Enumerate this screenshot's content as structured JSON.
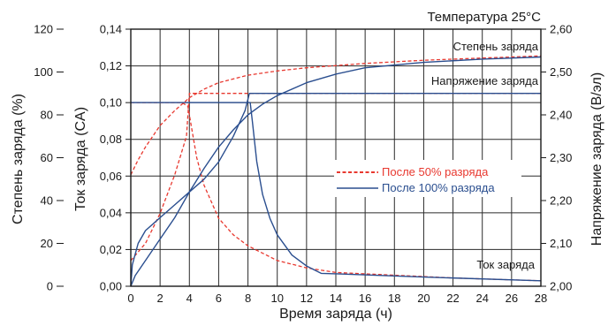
{
  "chart_data": {
    "type": "line",
    "title": "Температура 25°C",
    "xlabel": "Время заряда (ч)",
    "ylabel_outer": "Степень заряда (%)",
    "ylabel_inner": "Ток заряда (CA)",
    "ylabel_right": "Напряжение заряда (В/эл)",
    "xlim": [
      0,
      28
    ],
    "x_ticks": [
      "0",
      "2",
      "4",
      "6",
      "8",
      "10",
      "12",
      "14",
      "16",
      "18",
      "20",
      "22",
      "24",
      "26",
      "28"
    ],
    "y_soc_lim": [
      0,
      120
    ],
    "y_soc_ticks": [
      "0",
      "20",
      "40",
      "60",
      "80",
      "100",
      "120"
    ],
    "y_current_lim": [
      0,
      0.14
    ],
    "y_current_ticks": [
      "0,00",
      "0,02",
      "0,04",
      "0,06",
      "0,08",
      "0,10",
      "0,12",
      "0,14"
    ],
    "y_voltage_lim": [
      2.0,
      2.6
    ],
    "y_voltage_ticks": [
      "2,00",
      "2,10",
      "2,20",
      "2,30",
      "2,40",
      "2,50",
      "2,60"
    ],
    "grid": true,
    "legend_placement": "center-right",
    "annotations": {
      "soc": "Степень заряда",
      "voltage": "Напряжение заряда",
      "current": "Ток заряда"
    },
    "colors": {
      "red": "#e8382f",
      "blue": "#2a4e8f"
    },
    "series": [
      {
        "name": "После 50% разряда",
        "color": "#e8382f",
        "dash": true,
        "curves": {
          "soc_percent": [
            [
              0,
              52
            ],
            [
              0.5,
              59
            ],
            [
              1,
              65
            ],
            [
              2,
              75
            ],
            [
              3,
              82
            ],
            [
              4,
              88
            ],
            [
              5,
              92
            ],
            [
              6,
              95
            ],
            [
              8,
              98.5
            ],
            [
              10,
              100.5
            ],
            [
              12,
              102
            ],
            [
              16,
              104
            ],
            [
              20,
              105.5
            ],
            [
              24,
              106.5
            ],
            [
              28,
              107.5
            ]
          ],
          "current_ca": [
            [
              0,
              0.1
            ],
            [
              3.5,
              0.1
            ],
            [
              3.9,
              0.098
            ],
            [
              4.5,
              0.07
            ],
            [
              5,
              0.055
            ],
            [
              6,
              0.037
            ],
            [
              7,
              0.028
            ],
            [
              8,
              0.022
            ],
            [
              10,
              0.014
            ],
            [
              12,
              0.01
            ],
            [
              14,
              0.0075
            ],
            [
              18,
              0.006
            ],
            [
              22,
              0.0045
            ],
            [
              28,
              0.003
            ]
          ],
          "voltage_v_per_cell": [
            [
              0,
              2.06
            ],
            [
              0.5,
              2.08
            ],
            [
              1,
              2.1
            ],
            [
              2,
              2.17
            ],
            [
              3,
              2.26
            ],
            [
              3.8,
              2.35
            ],
            [
              4,
              2.45
            ],
            [
              28,
              2.45
            ]
          ]
        }
      },
      {
        "name": "После 100% разряда",
        "color": "#2a4e8f",
        "dash": false,
        "curves": {
          "soc_percent": [
            [
              0,
              0
            ],
            [
              0.3,
              5
            ],
            [
              1,
              12
            ],
            [
              2,
              22
            ],
            [
              3,
              32
            ],
            [
              4,
              44
            ],
            [
              5,
              55
            ],
            [
              6,
              65
            ],
            [
              7,
              73
            ],
            [
              8,
              80
            ],
            [
              9,
              85
            ],
            [
              10,
              89
            ],
            [
              12,
              95
            ],
            [
              14,
              99
            ],
            [
              16,
              102
            ],
            [
              20,
              104.5
            ],
            [
              24,
              106
            ],
            [
              28,
              107
            ]
          ],
          "current_ca": [
            [
              0,
              0.1
            ],
            [
              8.15,
              0.1
            ],
            [
              8.3,
              0.09
            ],
            [
              8.6,
              0.068
            ],
            [
              9,
              0.05
            ],
            [
              9.5,
              0.037
            ],
            [
              10,
              0.028
            ],
            [
              11,
              0.017
            ],
            [
              12,
              0.011
            ],
            [
              13,
              0.007
            ],
            [
              14,
              0.0068
            ],
            [
              20,
              0.005
            ],
            [
              28,
              0.003
            ]
          ],
          "voltage_v_per_cell": [
            [
              0,
              2.0
            ],
            [
              0.1,
              2.05
            ],
            [
              0.5,
              2.1
            ],
            [
              1,
              2.13
            ],
            [
              2,
              2.16
            ],
            [
              3,
              2.19
            ],
            [
              4,
              2.22
            ],
            [
              5,
              2.25
            ],
            [
              6,
              2.29
            ],
            [
              7,
              2.35
            ],
            [
              7.8,
              2.41
            ],
            [
              8.1,
              2.45
            ],
            [
              28,
              2.45
            ]
          ]
        }
      }
    ]
  }
}
